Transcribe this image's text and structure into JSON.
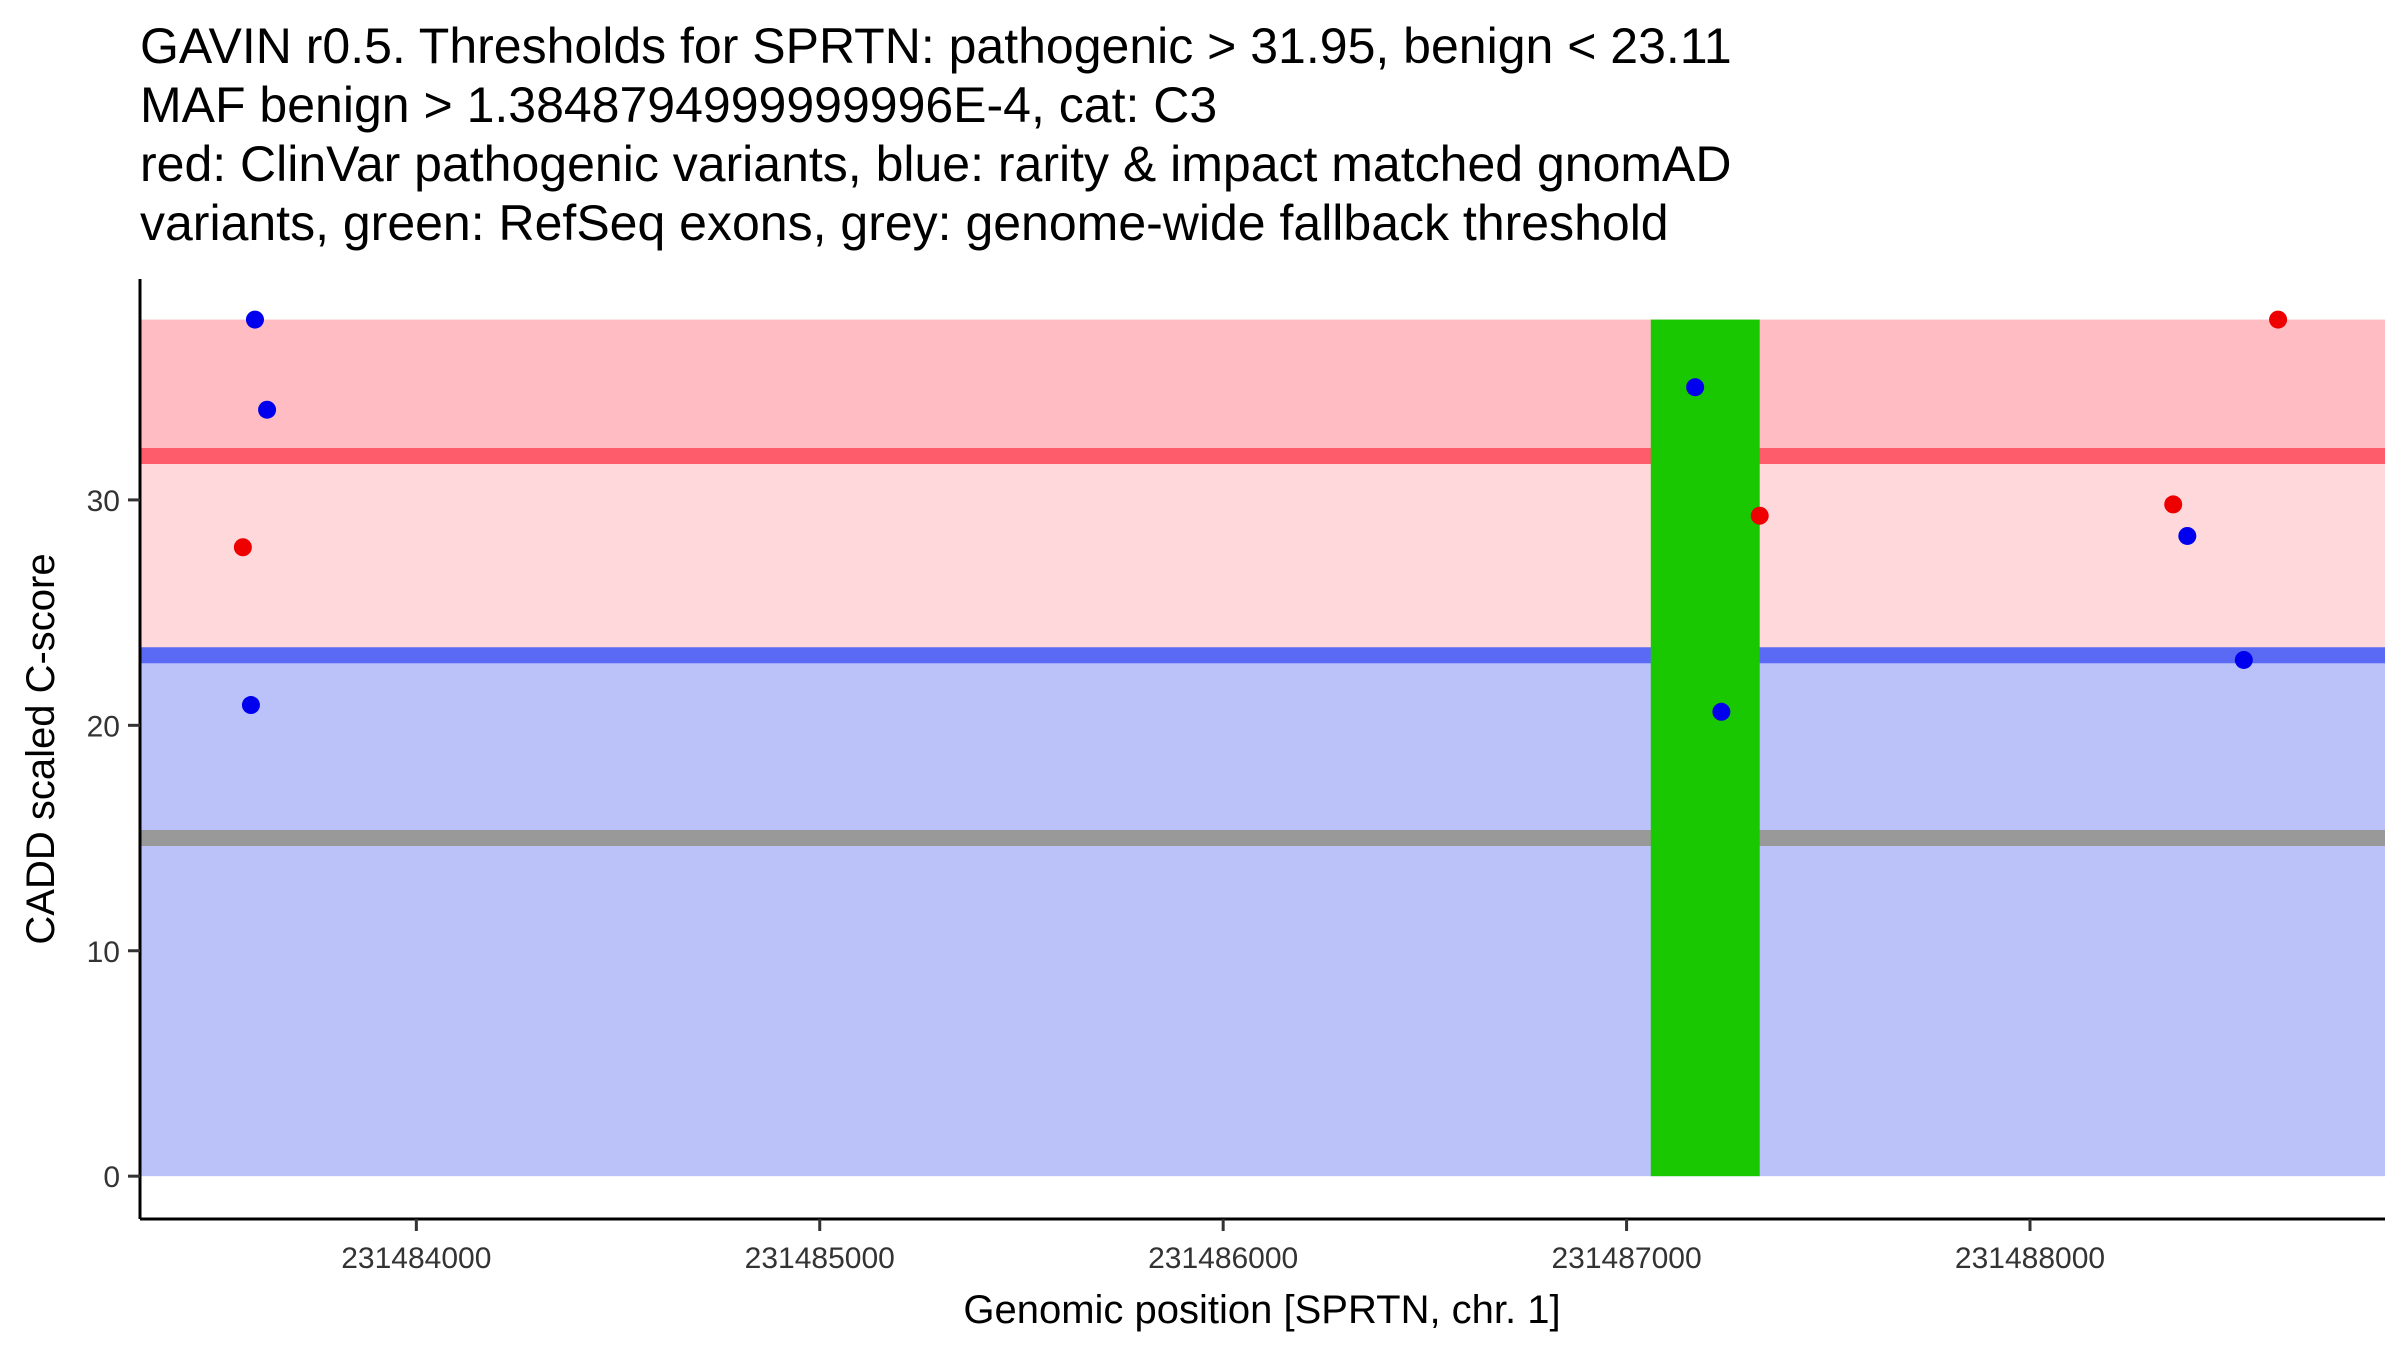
{
  "chart_data": {
    "type": "scatter",
    "title_lines": [
      "GAVIN r0.5. Thresholds for SPRTN: pathogenic > 31.95, benign < 23.11",
      "MAF benign > 1.3848794999999996E-4, cat: C3",
      "red: ClinVar pathogenic variants, blue: rarity & impact matched gnomAD",
      "variants, green: RefSeq exons, grey: genome-wide fallback threshold"
    ],
    "xlabel": "Genomic position [SPRTN, chr. 1]",
    "ylabel": "CADD scaled C-score",
    "xlim": [
      231483315,
      231488880
    ],
    "ylim": [
      -1.9,
      39.8
    ],
    "x_ticks": [
      231484000,
      231485000,
      231486000,
      231487000,
      231488000
    ],
    "x_tick_labels": [
      "231484000",
      "231485000",
      "231486000",
      "231487000",
      "231488000"
    ],
    "y_ticks": [
      0,
      10,
      20,
      30
    ],
    "y_tick_labels": [
      "0",
      "10",
      "20",
      "30"
    ],
    "grid": false,
    "thresholds": {
      "pathogenic": 31.95,
      "benign": 23.11,
      "fallback": 15,
      "score_max": 38
    },
    "exons": [
      {
        "start": 231487060,
        "end": 231487330
      }
    ],
    "colors": {
      "pathogenic_region": "#ffbdc3",
      "mid_region": "#ffd8dc",
      "benign_region": "#bbc1f9",
      "pathogenic_line": "#ff5c6b",
      "benign_line": "#5a6af5",
      "fallback_line": "#999999",
      "exon": "#19c800",
      "pathogenic_point": "#ee0000",
      "benign_point": "#0000ee"
    },
    "series": [
      {
        "name": "ClinVar pathogenic variants",
        "color_key": "pathogenic_point",
        "points": [
          {
            "x": 231483570,
            "y": 27.9
          },
          {
            "x": 231487330,
            "y": 29.3
          },
          {
            "x": 231488355,
            "y": 29.8
          },
          {
            "x": 231488615,
            "y": 38.0
          }
        ]
      },
      {
        "name": "rarity & impact matched gnomAD variants",
        "color_key": "benign_point",
        "points": [
          {
            "x": 231483600,
            "y": 38.0
          },
          {
            "x": 231483630,
            "y": 34.0
          },
          {
            "x": 231483590,
            "y": 20.9
          },
          {
            "x": 231487170,
            "y": 35.0
          },
          {
            "x": 231487235,
            "y": 20.6
          },
          {
            "x": 231488390,
            "y": 28.4
          },
          {
            "x": 231488530,
            "y": 22.9
          }
        ]
      }
    ]
  }
}
